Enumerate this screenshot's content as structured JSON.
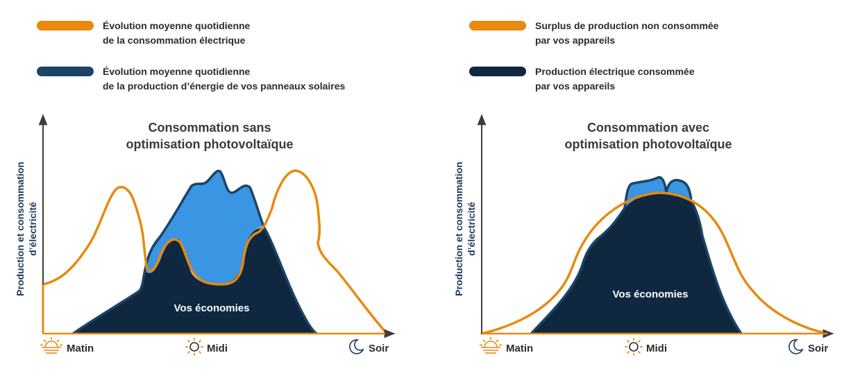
{
  "colors": {
    "consumption": "#E8890C",
    "production": "#3A95E2",
    "production_dark": "#0F2840",
    "outline": "#1B4466",
    "axis": "#3D3D3D",
    "text": "#2B2B2B"
  },
  "legend_left": [
    {
      "color_key": "consumption",
      "line1": "Évolution moyenne quotidienne",
      "line2": "de la consommation électrique"
    },
    {
      "color_key": "outline",
      "line1": "Évolution moyenne quotidienne",
      "line2": "de la production d’énergie de vos panneaux solaires"
    }
  ],
  "legend_right": [
    {
      "color_key": "consumption",
      "line1": "Surplus de production non consommée",
      "line2": "par vos appareils"
    },
    {
      "color_key": "production_dark",
      "line1": "Production électrique consommée",
      "line2": "par vos appareils"
    }
  ],
  "chart_data": [
    {
      "type": "area",
      "title_line1": "Consommation sans",
      "title_line2": "optimisation photovoltaïque",
      "ylabel_line1": "Production et consommation",
      "ylabel_line2": "d’électricité",
      "x_ticks": [
        {
          "label": "Matin",
          "icon": "sunrise-icon"
        },
        {
          "label": "Midi",
          "icon": "sun-icon"
        },
        {
          "label": "Soir",
          "icon": "moon-icon"
        }
      ],
      "annotation": "Vos économies",
      "series": [
        {
          "name": "Évolution moyenne quotidienne de la consommation électrique",
          "style": "line"
        },
        {
          "name": "Évolution moyenne quotidienne de la production d’énergie de vos panneaux solaires",
          "style": "area"
        }
      ]
    },
    {
      "type": "area",
      "title_line1": "Consommation avec",
      "title_line2": "optimisation photovoltaïque",
      "ylabel_line1": "Production et consommation",
      "ylabel_line2": "d’électricité",
      "x_ticks": [
        {
          "label": "Matin",
          "icon": "sunrise-icon"
        },
        {
          "label": "Midi",
          "icon": "sun-icon"
        },
        {
          "label": "Soir",
          "icon": "moon-icon"
        }
      ],
      "annotation": "Vos économies",
      "series": [
        {
          "name": "Surplus de production non consommée par vos appareils",
          "style": "area"
        },
        {
          "name": "Production électrique consommée par vos appareils",
          "style": "area"
        }
      ]
    }
  ]
}
